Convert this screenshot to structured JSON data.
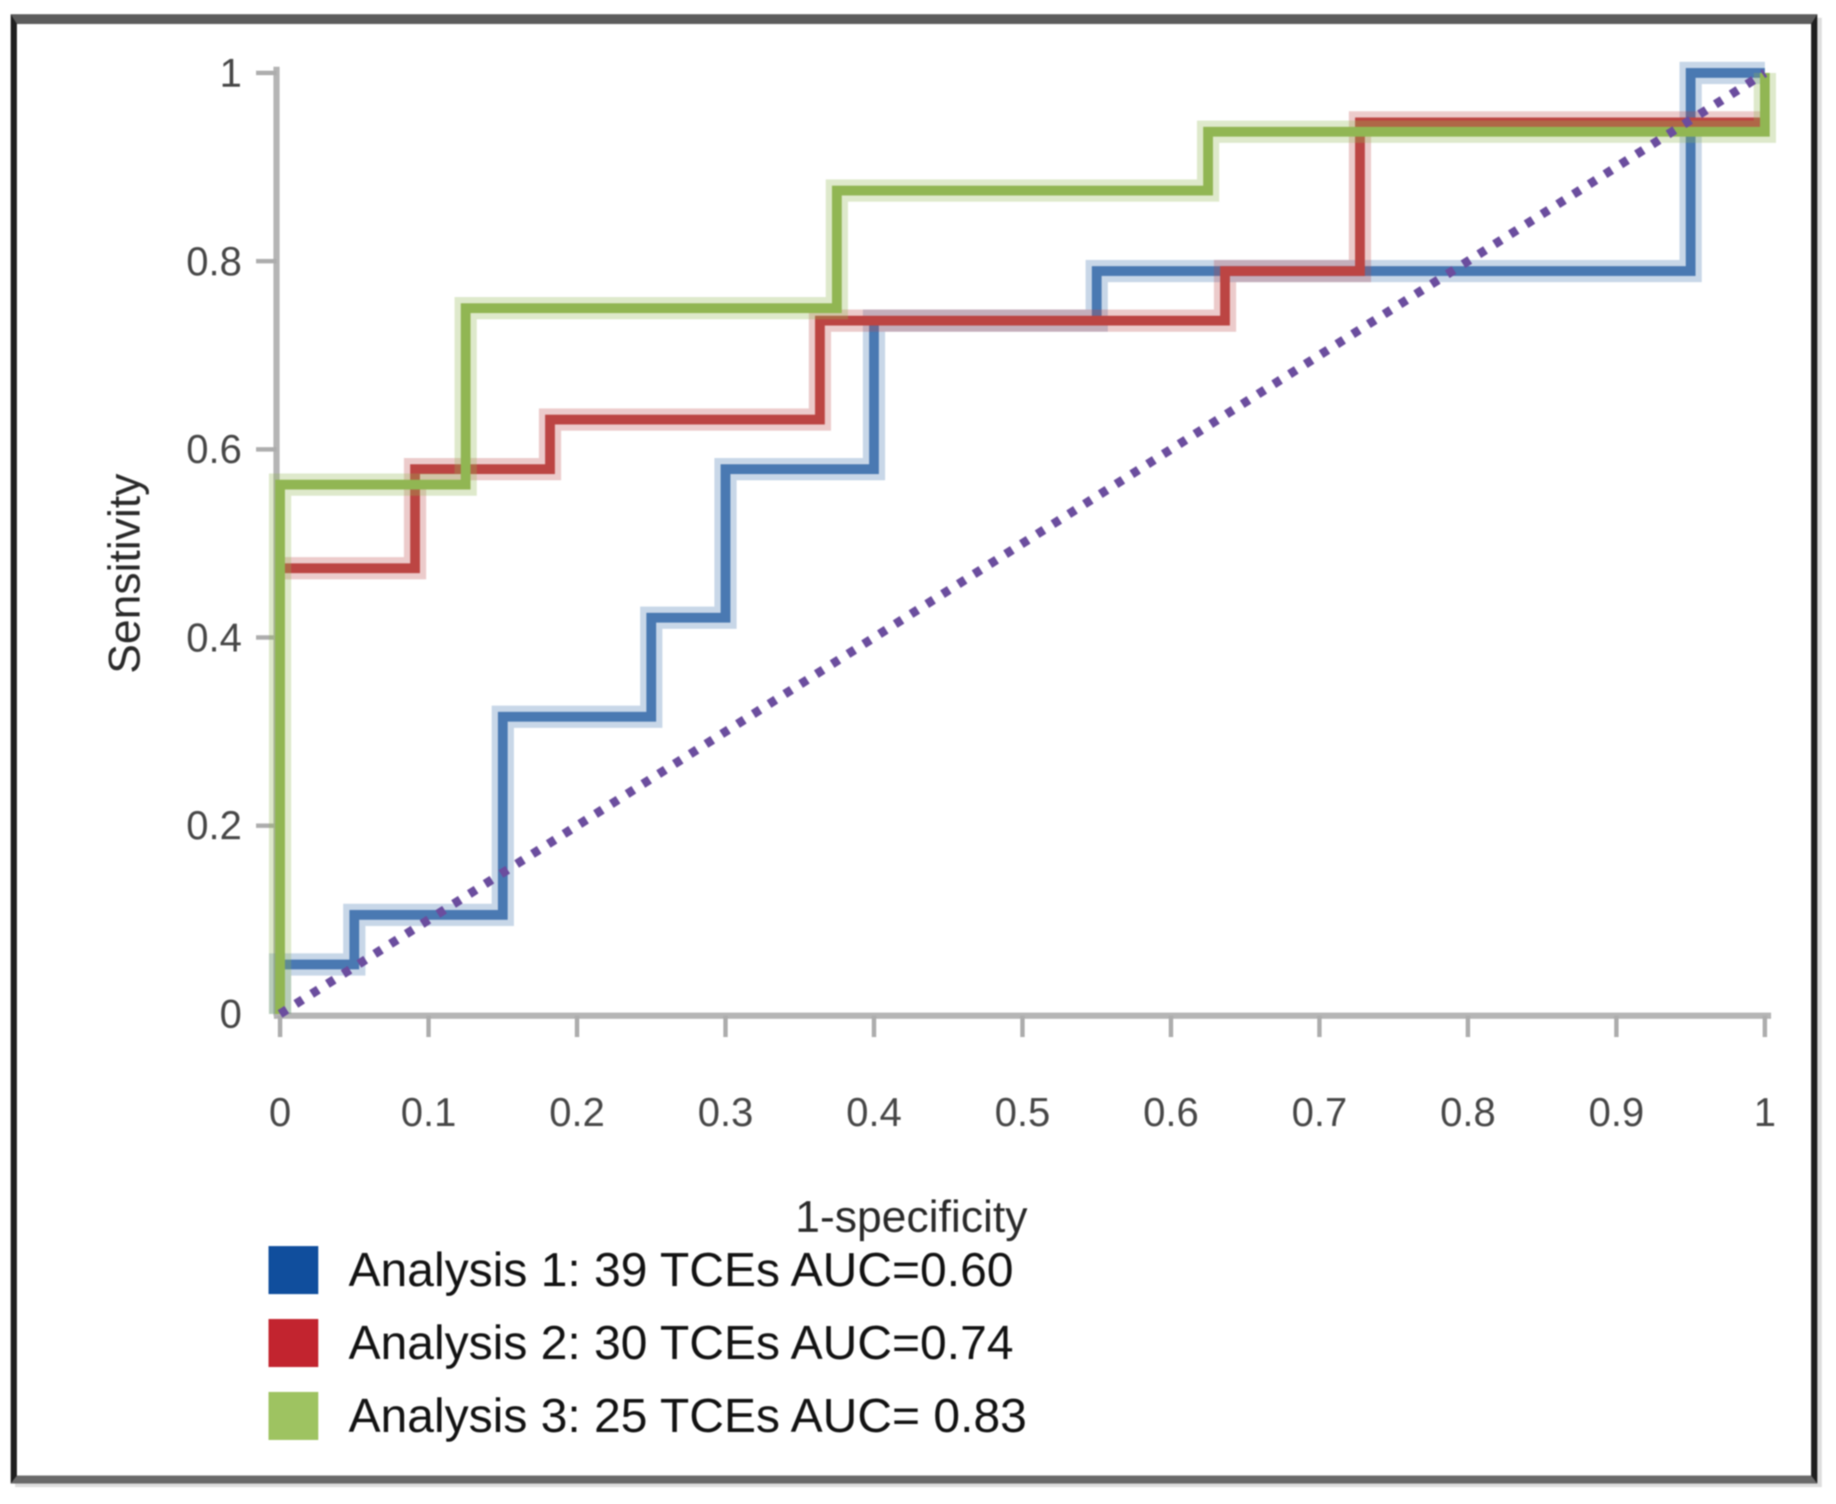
{
  "chart_data": {
    "type": "line",
    "subtype": "roc-step-curves",
    "title": "",
    "xlabel": "1-specificity",
    "ylabel": "Sensitivity",
    "xlim": [
      0,
      1
    ],
    "ylim": [
      0,
      1
    ],
    "grid": false,
    "legend_position": "bottom-left",
    "x_tick_values": [
      0,
      0.1,
      0.2,
      0.3,
      0.4,
      0.5,
      0.6,
      0.7,
      0.8,
      0.9,
      1
    ],
    "x_tick_labels": [
      "0",
      "0.1",
      "0.2",
      "0.3",
      "0.4",
      "0.5",
      "0.6",
      "0.7",
      "0.8",
      "0.9",
      "1"
    ],
    "y_tick_values": [
      0,
      0.2,
      0.4,
      0.6,
      0.8,
      1
    ],
    "y_tick_labels": [
      "0",
      "0.2",
      "0.4",
      "0.6",
      "0.8",
      "1"
    ],
    "series": [
      {
        "name": "Analysis 1: 39 TCEs AUC=0.60",
        "tces": 39,
        "auc": 0.6,
        "line_color": "#4a79b2",
        "halo_color": "rgba(74,121,178,0.30)",
        "legend_color": "#104e9d",
        "points": [
          [
            0,
            0
          ],
          [
            0,
            0.0526
          ],
          [
            0.05,
            0.0526
          ],
          [
            0.05,
            0.1053
          ],
          [
            0.15,
            0.1053
          ],
          [
            0.15,
            0.3158
          ],
          [
            0.25,
            0.3158
          ],
          [
            0.25,
            0.4211
          ],
          [
            0.3,
            0.4211
          ],
          [
            0.3,
            0.5789
          ],
          [
            0.4,
            0.5789
          ],
          [
            0.4,
            0.7368
          ],
          [
            0.55,
            0.7368
          ],
          [
            0.55,
            0.7895
          ],
          [
            0.95,
            0.7895
          ],
          [
            0.95,
            1
          ],
          [
            1,
            1
          ]
        ]
      },
      {
        "name": "Analysis 2: 30 TCEs AUC=0.74",
        "tces": 30,
        "auc": 0.74,
        "line_color": "#bc4543",
        "halo_color": "rgba(188,69,67,0.28)",
        "legend_color": "#c2242f",
        "points": [
          [
            0,
            0.4737
          ],
          [
            0.0909,
            0.4737
          ],
          [
            0.0909,
            0.5789
          ],
          [
            0.1818,
            0.5789
          ],
          [
            0.1818,
            0.6316
          ],
          [
            0.3636,
            0.6316
          ],
          [
            0.3636,
            0.7368
          ],
          [
            0.6364,
            0.7368
          ],
          [
            0.6364,
            0.7895
          ],
          [
            0.7273,
            0.7895
          ],
          [
            0.7273,
            0.9474
          ],
          [
            1,
            0.9474
          ]
        ]
      },
      {
        "name": "Analysis 3: 25 TCEs AUC= 0.83",
        "tces": 25,
        "auc": 0.83,
        "line_color": "#91b653",
        "halo_color": "rgba(145,182,83,0.30)",
        "legend_color": "#9ec361",
        "points": [
          [
            0,
            0
          ],
          [
            0,
            0.5625
          ],
          [
            0.125,
            0.5625
          ],
          [
            0.125,
            0.75
          ],
          [
            0.375,
            0.75
          ],
          [
            0.375,
            0.875
          ],
          [
            0.625,
            0.875
          ],
          [
            0.625,
            0.9375
          ],
          [
            1,
            0.9375
          ],
          [
            1,
            1
          ]
        ]
      }
    ],
    "reference_line": {
      "from": [
        0,
        0
      ],
      "to": [
        1,
        1
      ],
      "style": "dotted",
      "color": "#6b4d9e"
    },
    "axis_color": "#b5b5b5",
    "tick_color": "#adadad"
  },
  "axes": {
    "x_label": "1-specificity",
    "y_label": "Sensitivity"
  }
}
